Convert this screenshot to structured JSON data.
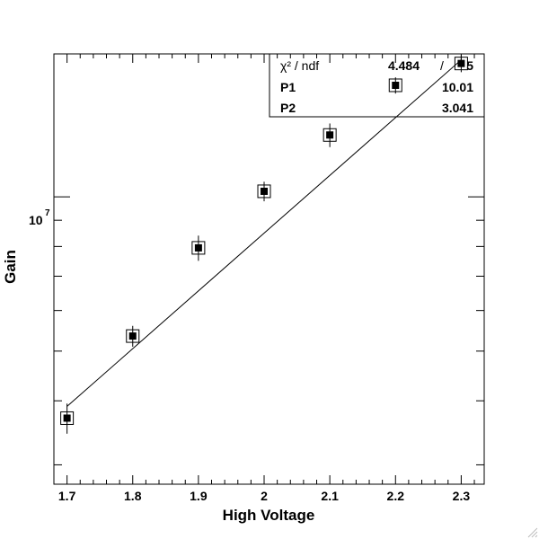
{
  "chart_data": {
    "type": "scatter",
    "title": "",
    "xlabel": "High Voltage",
    "ylabel": "Gain",
    "xlim": [
      1.68,
      2.335
    ],
    "ylim": [
      2750000,
      19000000
    ],
    "y_scale": "log",
    "x_ticks": [
      {
        "value": 1.7,
        "label": "1.7"
      },
      {
        "value": 1.8,
        "label": "1.8"
      },
      {
        "value": 1.9,
        "label": "1.9"
      },
      {
        "value": 2.0,
        "label": "2"
      },
      {
        "value": 2.1,
        "label": "2.1"
      },
      {
        "value": 2.2,
        "label": "2.2"
      },
      {
        "value": 2.3,
        "label": "2.3"
      }
    ],
    "y_labeled_tick": {
      "value": 10000000,
      "base": "10",
      "exponent": "7"
    },
    "points": [
      {
        "x": 1.7,
        "y": 3700000,
        "yerr": 250000
      },
      {
        "x": 1.8,
        "y": 5350000,
        "yerr": 250000
      },
      {
        "x": 1.9,
        "y": 7950000,
        "yerr": 450000
      },
      {
        "x": 2.0,
        "y": 10250000,
        "yerr": 450000
      },
      {
        "x": 2.1,
        "y": 13200000,
        "yerr": 700000
      },
      {
        "x": 2.2,
        "y": 16500000,
        "yerr": 600000
      },
      {
        "x": 2.3,
        "y": 18200000,
        "yerr": 700000
      }
    ],
    "fit": {
      "x": [
        1.7,
        2.3
      ],
      "y": [
        3900000,
        18500000
      ]
    },
    "grid": false,
    "legend": "none",
    "stats_box": {
      "placement": "top-right",
      "rows": [
        {
          "name": "χ² / ndf",
          "value": "4.484",
          "sep": "/",
          "extra": "5"
        },
        {
          "name": "P1",
          "value": "10.01"
        },
        {
          "name": "P2",
          "value": "3.041"
        }
      ]
    }
  }
}
